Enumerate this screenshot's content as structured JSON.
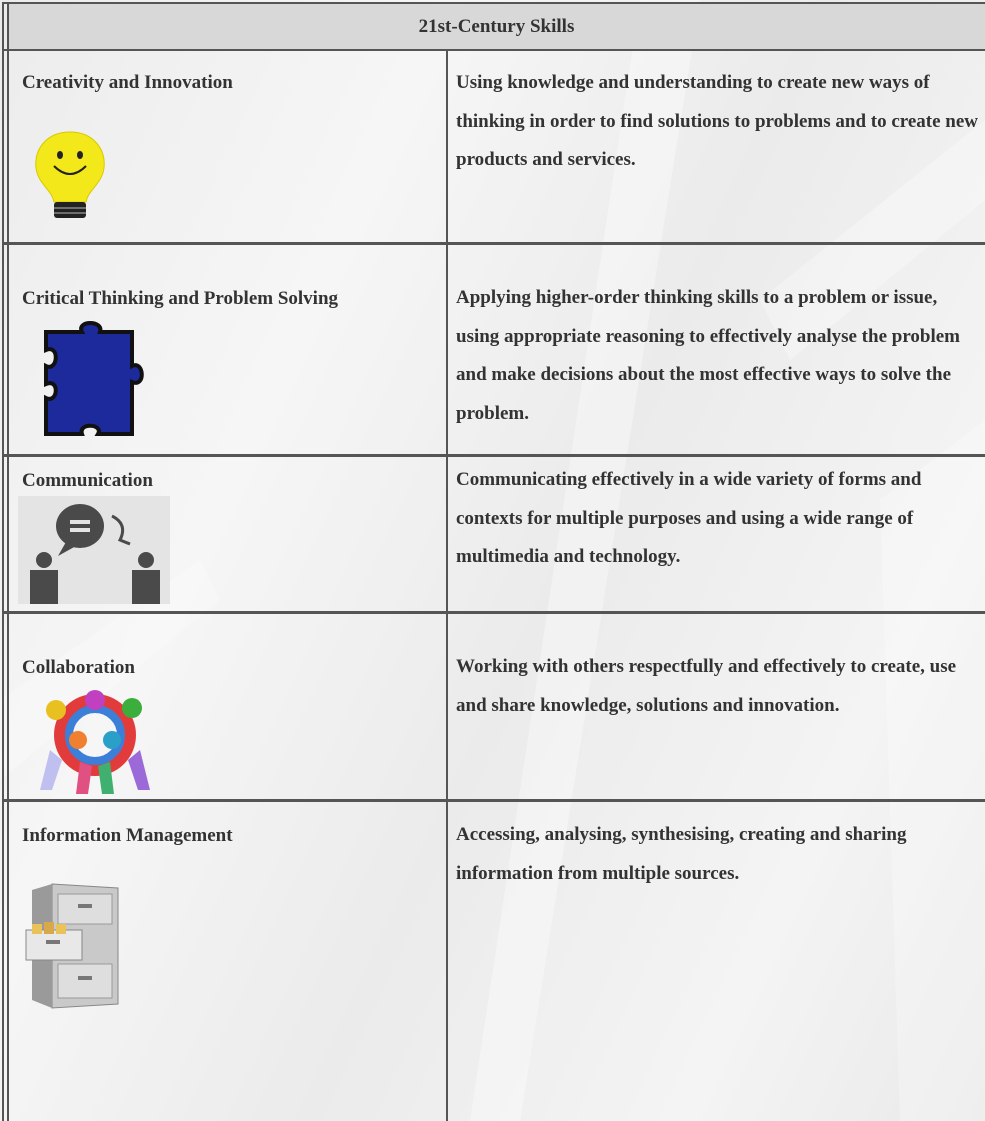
{
  "table": {
    "header": "21st-Century Skills",
    "rows": [
      [
        "Creativity and Innovation",
        "Using knowledge and understanding to create new ways of thinking in order to find solutions to problems and to create new products and services."
      ],
      [
        "Critical Thinking and Problem Solving",
        "Applying higher-order thinking skills to a problem or issue, using appropriate reasoning to effectively analyse the problem and make decisions about the most effective ways to solve the problem."
      ],
      [
        "Communication",
        "Communicating effectively in a wide variety of forms and contexts for multiple purposes and using a wide range of multimedia and technology."
      ],
      [
        "Collaboration",
        "Working with others respectfully and effectively to create, use and share knowledge, solutions and innovation."
      ],
      [
        "Information Management",
        "Accessing, analysing, synthesising, creating and sharing information from multiple sources."
      ]
    ]
  }
}
